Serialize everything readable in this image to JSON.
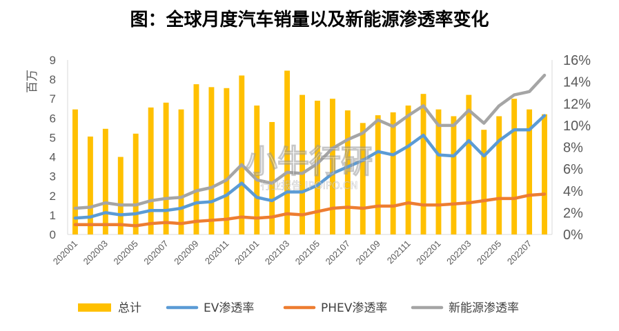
{
  "title": "图：全球月度汽车销量以及新能源渗透率变化",
  "chart_data": {
    "type": "bar+line",
    "x": [
      "202001",
      "202002",
      "202003",
      "202004",
      "202005",
      "202006",
      "202007",
      "202008",
      "202009",
      "202010",
      "202011",
      "202012",
      "202101",
      "202102",
      "202103",
      "202104",
      "202105",
      "202106",
      "202107",
      "202108",
      "202109",
      "202110",
      "202111",
      "202112",
      "202201",
      "202202",
      "202203",
      "202204",
      "202205",
      "202206",
      "202207",
      "202208"
    ],
    "xtick_labels": [
      "202001",
      "202003",
      "202005",
      "202007",
      "202009",
      "202011",
      "202101",
      "202103",
      "202105",
      "202107",
      "202109",
      "202111",
      "202201",
      "202203",
      "202205",
      "202207"
    ],
    "y_left": {
      "label": "百万",
      "ylim": [
        0,
        9
      ],
      "ticks": [
        "0",
        "1",
        "2",
        "3",
        "4",
        "5",
        "6",
        "7",
        "8",
        "9"
      ]
    },
    "y_right": {
      "ylim": [
        0,
        16
      ],
      "ticks": [
        "0%",
        "2%",
        "4%",
        "6%",
        "8%",
        "10%",
        "12%",
        "14%",
        "16%"
      ]
    },
    "series": [
      {
        "name": "总计",
        "type": "bar",
        "axis": "left",
        "color": "#FFC000",
        "values": [
          6.45,
          5.05,
          5.45,
          4.0,
          5.2,
          6.55,
          6.8,
          6.45,
          7.75,
          7.6,
          7.55,
          8.2,
          6.65,
          5.8,
          8.45,
          7.2,
          6.9,
          7.0,
          6.4,
          5.75,
          6.15,
          6.3,
          6.65,
          7.25,
          6.45,
          6.1,
          7.2,
          5.4,
          6.1,
          7.0,
          6.45,
          6.2
        ]
      },
      {
        "name": "EV渗透率",
        "type": "line",
        "axis": "right",
        "color": "#5B9BD5",
        "values": [
          1.5,
          1.6,
          2.0,
          1.8,
          1.9,
          2.2,
          2.2,
          2.4,
          2.9,
          3.0,
          3.6,
          4.7,
          3.4,
          3.1,
          3.9,
          3.9,
          4.5,
          5.6,
          6.2,
          6.8,
          7.6,
          7.3,
          8.1,
          9.1,
          7.3,
          7.2,
          8.6,
          7.2,
          8.6,
          9.6,
          9.6,
          10.9
        ]
      },
      {
        "name": "PHEV渗透率",
        "type": "line",
        "axis": "right",
        "color": "#ED7D31",
        "values": [
          0.9,
          0.9,
          0.9,
          0.9,
          0.8,
          1.0,
          1.1,
          1.0,
          1.2,
          1.3,
          1.4,
          1.6,
          1.5,
          1.6,
          1.9,
          1.8,
          2.1,
          2.4,
          2.5,
          2.4,
          2.6,
          2.6,
          2.9,
          2.7,
          2.7,
          2.8,
          2.9,
          3.1,
          3.3,
          3.3,
          3.6,
          3.7
        ]
      },
      {
        "name": "新能源渗透率",
        "type": "line",
        "axis": "right",
        "color": "#A5A5A5",
        "values": [
          2.4,
          2.5,
          2.9,
          2.7,
          2.7,
          3.1,
          3.3,
          3.4,
          4.0,
          4.3,
          5.0,
          6.4,
          5.0,
          4.7,
          5.7,
          5.6,
          6.5,
          7.9,
          8.7,
          9.3,
          10.5,
          9.9,
          10.9,
          11.8,
          10.0,
          10.0,
          11.4,
          10.2,
          11.8,
          12.8,
          13.1,
          14.6
        ]
      }
    ],
    "legend": "bottom",
    "grid": false
  },
  "watermark": "小牛行研 行业报告 IPOIPO.CN"
}
